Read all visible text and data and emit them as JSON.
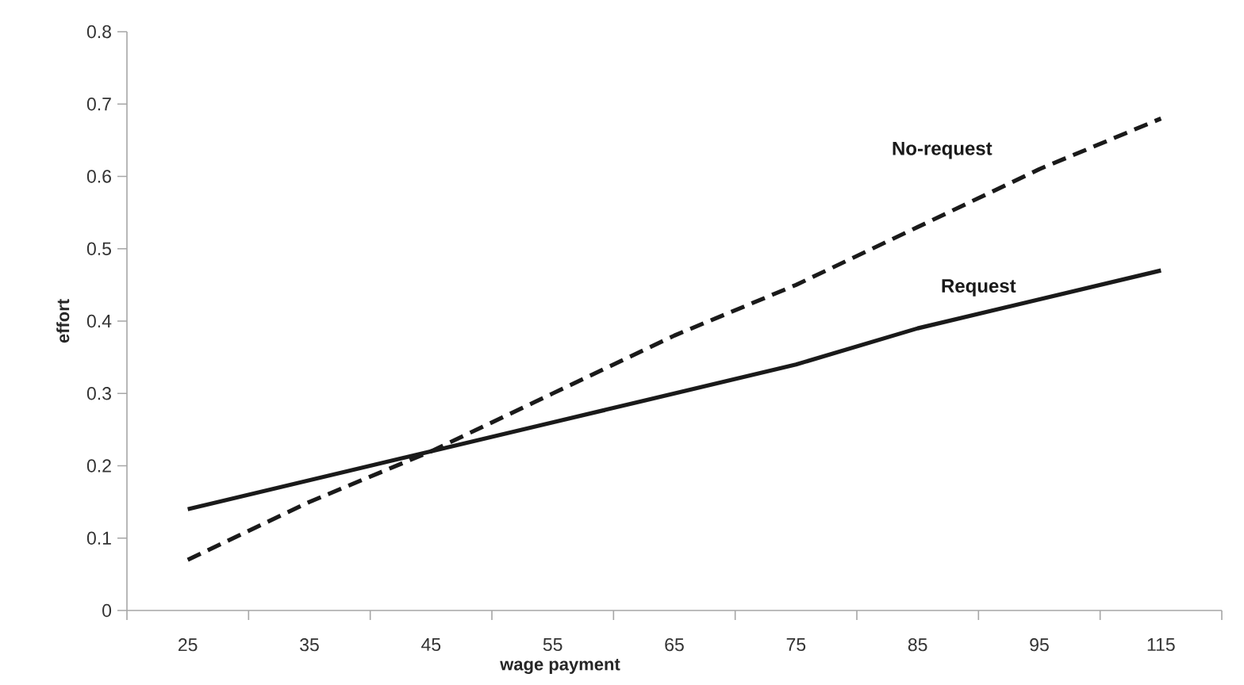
{
  "chart_data": {
    "type": "line",
    "xlabel": "wage payment",
    "ylabel": "effort",
    "categories": [
      "25",
      "35",
      "45",
      "55",
      "65",
      "75",
      "85",
      "95",
      "115"
    ],
    "series": [
      {
        "name": "Request",
        "color": "#1a1a1a",
        "line_style": "solid",
        "values": [
          0.14,
          0.18,
          0.22,
          0.26,
          0.3,
          0.34,
          0.39,
          0.43,
          0.47
        ]
      },
      {
        "name": "No-request",
        "color": "#1a1a1a",
        "line_style": "dashed",
        "values": [
          0.07,
          0.15,
          0.22,
          0.3,
          0.38,
          0.45,
          0.53,
          0.61,
          0.68
        ]
      }
    ],
    "ylim": [
      0,
      0.8
    ],
    "yticks": [
      0,
      0.1,
      0.2,
      0.3,
      0.4,
      0.5,
      0.6,
      0.7,
      0.8
    ],
    "grid": false,
    "legend": false,
    "marker": "none"
  }
}
